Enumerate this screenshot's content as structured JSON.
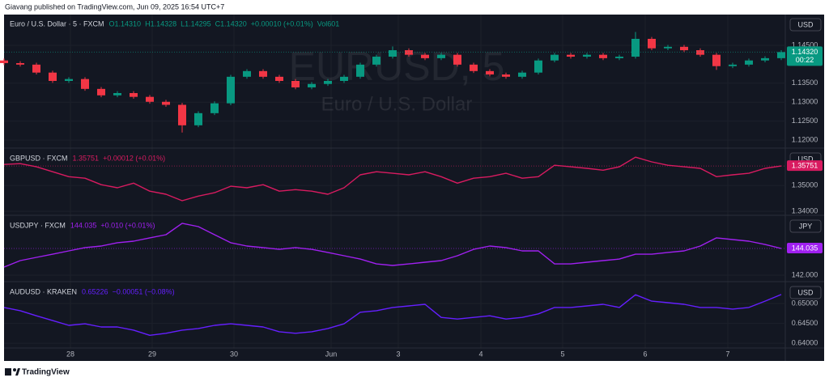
{
  "header": {
    "text": "Giavang published on TradingView.com, Jun 09, 2025 16:54 UTC+7"
  },
  "chart_data": [
    {
      "type": "candlestick",
      "title": "Euro / U.S. Dollar · 5 · FXCM",
      "legend_values": [
        "O1.14310",
        "H1.14328",
        "L1.14295",
        "C1.14320",
        "+0.00010 (+0.01%)",
        "Vol601"
      ],
      "watermark": "EURUSD, 5",
      "watermark_subtitle": "Euro / U.S. Dollar",
      "currency": "USD",
      "last_label": "1.14320",
      "countdown": "00:22",
      "up_color": "#089981",
      "down_color": "#f23645",
      "legend_color": "#089981",
      "x": [
        0,
        2,
        4,
        6,
        8,
        10,
        12,
        14,
        16,
        18,
        20,
        22,
        24,
        26,
        28,
        30,
        32,
        34,
        36,
        38,
        40,
        42,
        44,
        46,
        48,
        50,
        52,
        54,
        56,
        58,
        60,
        62,
        64,
        66,
        68,
        70,
        72,
        74,
        76,
        78,
        80,
        82,
        84,
        86,
        88,
        90,
        92,
        94,
        96
      ],
      "open": [
        1.141,
        1.1403,
        1.1399,
        1.1378,
        1.1356,
        1.1361,
        1.1335,
        1.1318,
        1.1324,
        1.1314,
        1.1301,
        1.1293,
        1.1239,
        1.1271,
        1.1297,
        1.1367,
        1.1382,
        1.1367,
        1.1356,
        1.1339,
        1.1348,
        1.1356,
        1.1367,
        1.1399,
        1.142,
        1.1437,
        1.1425,
        1.1416,
        1.1425,
        1.1399,
        1.1382,
        1.1373,
        1.1367,
        1.1378,
        1.141,
        1.1425,
        1.142,
        1.1425,
        1.1416,
        1.142,
        1.1467,
        1.1442,
        1.1446,
        1.1437,
        1.1425,
        1.1395,
        1.1399,
        1.141,
        1.1416
      ],
      "high": [
        1.1415,
        1.1408,
        1.1404,
        1.1383,
        1.1366,
        1.1366,
        1.134,
        1.1329,
        1.1329,
        1.1319,
        1.1306,
        1.1298,
        1.1276,
        1.1302,
        1.1372,
        1.1387,
        1.1387,
        1.1372,
        1.1361,
        1.1353,
        1.1361,
        1.1372,
        1.1404,
        1.1425,
        1.1447,
        1.1442,
        1.143,
        1.143,
        1.143,
        1.1404,
        1.1387,
        1.1378,
        1.1383,
        1.1415,
        1.143,
        1.143,
        1.143,
        1.143,
        1.1425,
        1.1485,
        1.1472,
        1.1451,
        1.1451,
        1.1442,
        1.143,
        1.1404,
        1.1415,
        1.1421,
        1.1437
      ],
      "low": [
        1.1398,
        1.1394,
        1.1373,
        1.1351,
        1.1351,
        1.133,
        1.1313,
        1.1313,
        1.1309,
        1.1296,
        1.1288,
        1.122,
        1.1234,
        1.1266,
        1.1292,
        1.1362,
        1.1362,
        1.1351,
        1.1334,
        1.1334,
        1.1343,
        1.1351,
        1.1362,
        1.1394,
        1.1415,
        1.142,
        1.1411,
        1.1411,
        1.1394,
        1.1377,
        1.1368,
        1.1362,
        1.1362,
        1.1373,
        1.1405,
        1.1415,
        1.1415,
        1.1411,
        1.1411,
        1.1415,
        1.1437,
        1.1437,
        1.1432,
        1.142,
        1.1385,
        1.139,
        1.1394,
        1.1405,
        1.1411
      ],
      "close": [
        1.1403,
        1.1399,
        1.1378,
        1.1356,
        1.1361,
        1.1335,
        1.1318,
        1.1324,
        1.1314,
        1.1301,
        1.1293,
        1.1239,
        1.1271,
        1.1297,
        1.1367,
        1.1382,
        1.1367,
        1.1356,
        1.1339,
        1.1348,
        1.1356,
        1.1367,
        1.1399,
        1.142,
        1.1437,
        1.1425,
        1.1416,
        1.1425,
        1.1399,
        1.1382,
        1.1373,
        1.1367,
        1.1378,
        1.141,
        1.1425,
        1.142,
        1.1425,
        1.1416,
        1.142,
        1.1467,
        1.1442,
        1.1446,
        1.1437,
        1.1425,
        1.1395,
        1.1399,
        1.141,
        1.1416,
        1.1432
      ],
      "xlim": [
        0,
        96
      ],
      "ylim": [
        1.1181,
        1.1531
      ],
      "yticks": [
        {
          "value": 1.12,
          "label": "1.12000"
        },
        {
          "value": 1.125,
          "label": "1.12500"
        },
        {
          "value": 1.13,
          "label": "1.13000"
        },
        {
          "value": 1.135,
          "label": "1.13500"
        },
        {
          "value": 1.145,
          "label": "1.14500"
        }
      ]
    },
    {
      "type": "line",
      "title": "GBPUSD · FXCM",
      "legend_values": [
        "1.35751",
        "+0.00012 (+0.01%)"
      ],
      "currency": "USD",
      "last_label": "1.35751",
      "color": "#d81b60",
      "x": [
        0,
        2,
        4,
        6,
        8,
        10,
        12,
        14,
        16,
        18,
        20,
        22,
        24,
        26,
        28,
        30,
        32,
        34,
        36,
        38,
        40,
        42,
        44,
        46,
        48,
        50,
        52,
        54,
        56,
        58,
        60,
        62,
        64,
        66,
        68,
        70,
        72,
        74,
        76,
        78,
        80,
        82,
        84,
        86,
        88,
        90,
        92,
        94,
        96
      ],
      "values": [
        1.3581,
        1.3584,
        1.3572,
        1.3553,
        1.3534,
        1.3528,
        1.3503,
        1.3491,
        1.3509,
        1.3478,
        1.3466,
        1.3441,
        1.3459,
        1.3472,
        1.3497,
        1.3491,
        1.3503,
        1.3478,
        1.3484,
        1.3478,
        1.3466,
        1.3491,
        1.3541,
        1.3553,
        1.3547,
        1.3541,
        1.3553,
        1.3534,
        1.3509,
        1.3528,
        1.3534,
        1.3547,
        1.3528,
        1.3534,
        1.3578,
        1.3572,
        1.3566,
        1.3559,
        1.3572,
        1.3609,
        1.3591,
        1.3578,
        1.3572,
        1.3566,
        1.3534,
        1.3541,
        1.3547,
        1.3566,
        1.35751
      ],
      "xlim": [
        0,
        96
      ],
      "ylim": [
        1.3388,
        1.3641
      ],
      "yticks": [
        {
          "value": 1.34,
          "label": "1.34000"
        },
        {
          "value": 1.35,
          "label": "1.35000"
        }
      ]
    },
    {
      "type": "line",
      "title": "USDJPY · FXCM",
      "legend_values": [
        "144.035",
        "+0.010 (+0.01%)"
      ],
      "currency": "JPY",
      "last_label": "144.035",
      "color": "#a020f0",
      "x": [
        0,
        2,
        4,
        6,
        8,
        10,
        12,
        14,
        16,
        18,
        20,
        22,
        24,
        26,
        28,
        30,
        32,
        34,
        36,
        38,
        40,
        42,
        44,
        46,
        48,
        50,
        52,
        54,
        56,
        58,
        60,
        62,
        64,
        66,
        68,
        70,
        72,
        74,
        76,
        78,
        80,
        82,
        84,
        86,
        88,
        90,
        92,
        94,
        96
      ],
      "values": [
        142.62,
        143.11,
        143.36,
        143.6,
        143.85,
        144.1,
        144.22,
        144.47,
        144.59,
        144.84,
        145.08,
        145.95,
        145.7,
        145.08,
        144.47,
        144.22,
        144.1,
        143.97,
        144.1,
        143.97,
        143.73,
        143.48,
        143.23,
        142.86,
        142.74,
        142.86,
        142.99,
        143.11,
        143.48,
        143.97,
        144.22,
        144.1,
        143.85,
        143.85,
        142.86,
        142.86,
        142.99,
        143.11,
        143.23,
        143.6,
        143.6,
        143.73,
        143.85,
        144.22,
        144.84,
        144.71,
        144.59,
        144.34,
        144.035
      ],
      "xlim": [
        0,
        96
      ],
      "ylim": [
        141.57,
        146.5
      ],
      "yticks": [
        {
          "value": 142,
          "label": "142.000"
        }
      ]
    },
    {
      "type": "line",
      "title": "AUDUSD · KRAKEN",
      "legend_values": [
        "0.65226",
        "−0.00051 (−0.08%)"
      ],
      "currency": "USD",
      "color": "#651fff",
      "x": [
        0,
        2,
        4,
        6,
        8,
        10,
        12,
        14,
        16,
        18,
        20,
        22,
        24,
        26,
        28,
        30,
        32,
        34,
        36,
        38,
        40,
        42,
        44,
        46,
        48,
        50,
        52,
        54,
        56,
        58,
        60,
        62,
        64,
        66,
        68,
        70,
        72,
        74,
        76,
        78,
        80,
        82,
        84,
        86,
        88,
        90,
        92,
        94,
        96
      ],
      "values": [
        0.649,
        0.6482,
        0.6469,
        0.6457,
        0.6445,
        0.6449,
        0.6441,
        0.6441,
        0.6433,
        0.642,
        0.6425,
        0.6433,
        0.6437,
        0.6445,
        0.6449,
        0.6445,
        0.6441,
        0.6429,
        0.6425,
        0.6429,
        0.6437,
        0.6449,
        0.6478,
        0.6482,
        0.649,
        0.6494,
        0.6498,
        0.6465,
        0.6461,
        0.6465,
        0.6469,
        0.6461,
        0.6465,
        0.6474,
        0.649,
        0.649,
        0.6494,
        0.6498,
        0.649,
        0.6522,
        0.6506,
        0.6502,
        0.6498,
        0.649,
        0.649,
        0.6486,
        0.649,
        0.6506,
        0.65226
      ],
      "xlim": [
        0,
        96
      ],
      "ylim": [
        0.6388,
        0.6553
      ],
      "yticks": [
        {
          "value": 0.64,
          "label": "0.64000"
        },
        {
          "value": 0.645,
          "label": "0.64500"
        },
        {
          "value": 0.65,
          "label": "0.65000"
        }
      ],
      "xticks": [
        {
          "value": 8.2,
          "label": "28"
        },
        {
          "value": 18.3,
          "label": "29"
        },
        {
          "value": 28.4,
          "label": "30"
        },
        {
          "value": 40.4,
          "label": "Jun"
        },
        {
          "value": 48.7,
          "label": "3"
        },
        {
          "value": 58.9,
          "label": "4"
        },
        {
          "value": 69.0,
          "label": "5"
        },
        {
          "value": 79.2,
          "label": "6"
        },
        {
          "value": 89.4,
          "label": "7"
        }
      ]
    }
  ],
  "footer": {
    "brand": "TradingView"
  }
}
